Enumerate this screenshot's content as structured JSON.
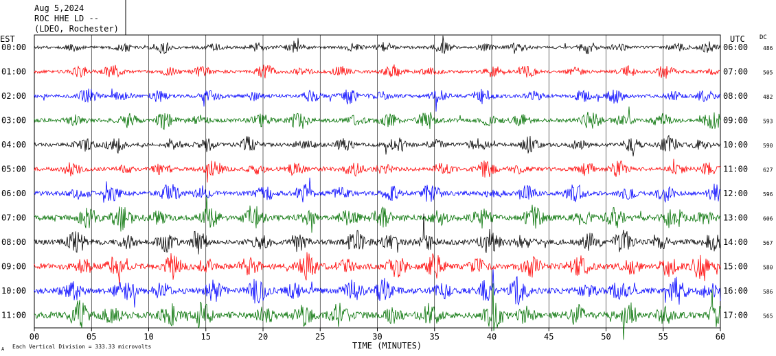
{
  "header": {
    "date": "Aug 5,2024",
    "station": "ROC HHE LD --",
    "network": "(LDEO, Rochester)"
  },
  "axis_labels": {
    "left_tz": "EST",
    "right_tz": "UTC",
    "dc": "DC",
    "xlabel": "TIME (MINUTES)",
    "footnote": "Each Vertical Division =  333.33 microvolts",
    "footnote_mark": "A"
  },
  "chart_data": {
    "type": "line",
    "title": "",
    "xlabel": "TIME (MINUTES)",
    "xlim": [
      0,
      60
    ],
    "x_ticks": [
      "00",
      "05",
      "10",
      "15",
      "20",
      "25",
      "30",
      "35",
      "40",
      "45",
      "50",
      "55",
      "60"
    ],
    "grid": true,
    "trace_colors": [
      "#000000",
      "#ff0000",
      "#0000ff",
      "#007000"
    ],
    "series": [
      {
        "left_label": "00:00",
        "right_label": "06:00",
        "dc": "486",
        "color": "#000000",
        "activity": 0.9
      },
      {
        "left_label": "01:00",
        "right_label": "07:00",
        "dc": "505",
        "color": "#ff0000",
        "activity": 1.0
      },
      {
        "left_label": "02:00",
        "right_label": "08:00",
        "dc": "482",
        "color": "#0000ff",
        "activity": 1.1
      },
      {
        "left_label": "03:00",
        "right_label": "09:00",
        "dc": "593",
        "color": "#007000",
        "activity": 1.3
      },
      {
        "left_label": "04:00",
        "right_label": "10:00",
        "dc": "590",
        "color": "#000000",
        "activity": 1.2
      },
      {
        "left_label": "05:00",
        "right_label": "11:00",
        "dc": "627",
        "color": "#ff0000",
        "activity": 1.2
      },
      {
        "left_label": "06:00",
        "right_label": "12:00",
        "dc": "596",
        "color": "#0000ff",
        "activity": 1.4
      },
      {
        "left_label": "07:00",
        "right_label": "13:00",
        "dc": "606",
        "color": "#007000",
        "activity": 1.8
      },
      {
        "left_label": "08:00",
        "right_label": "14:00",
        "dc": "567",
        "color": "#000000",
        "activity": 1.7
      },
      {
        "left_label": "09:00",
        "right_label": "15:00",
        "dc": "580",
        "color": "#ff0000",
        "activity": 1.9
      },
      {
        "left_label": "10:00",
        "right_label": "16:00",
        "dc": "586",
        "color": "#0000ff",
        "activity": 1.9
      },
      {
        "left_label": "11:00",
        "right_label": "17:00",
        "dc": "565",
        "color": "#007000",
        "activity": 2.1
      }
    ]
  }
}
